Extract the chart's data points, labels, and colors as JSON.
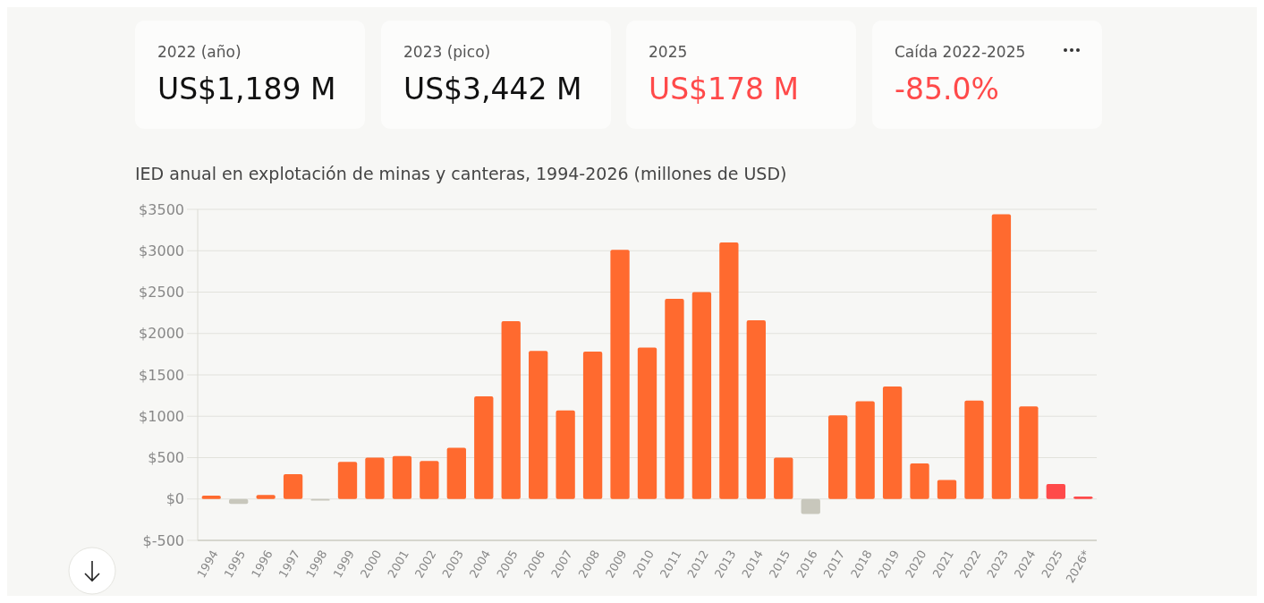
{
  "chart_data": [
    {
      "type": "other",
      "title": "2022 (año)",
      "subtitle": "US$1,189 M",
      "color": "#111111"
    },
    {
      "type": "other",
      "title": "2023 (pico)",
      "subtitle": "US$3,442 M",
      "color": "#111111"
    },
    {
      "type": "other",
      "title": "2025",
      "subtitle": "US$178 M",
      "color": "#ff4a4a"
    },
    {
      "type": "other",
      "title": "Caída 2022-2025",
      "subtitle": "-85.0%",
      "color": "#ff4a4a"
    },
    {
      "type": "bar",
      "title": "IED anual en explotación de minas y canteras, 1994-2026 (millones de USD)",
      "categories": [
        "1994",
        "1995",
        "1996",
        "1997",
        "1998",
        "1999",
        "2000",
        "2001",
        "2002",
        "2003",
        "2004",
        "2005",
        "2006",
        "2007",
        "2008",
        "2009",
        "2010",
        "2011",
        "2012",
        "2013",
        "2014",
        "2015",
        "2016",
        "2017",
        "2018",
        "2019",
        "2020",
        "2021",
        "2022",
        "2023",
        "2024",
        "2025",
        "2026*"
      ],
      "values": [
        40,
        -60,
        50,
        300,
        -20,
        450,
        500,
        520,
        460,
        620,
        1240,
        2150,
        1790,
        1070,
        1780,
        3010,
        1830,
        2420,
        2500,
        3100,
        2160,
        500,
        -180,
        1010,
        1180,
        1360,
        430,
        230,
        1190,
        3440,
        1120,
        180,
        30
      ],
      "colors": [
        "#ff6a2f",
        "#c8c7bc",
        "#ff6a2f",
        "#ff6a2f",
        "#c8c7bc",
        "#ff6a2f",
        "#ff6a2f",
        "#ff6a2f",
        "#ff6a2f",
        "#ff6a2f",
        "#ff6a2f",
        "#ff6a2f",
        "#ff6a2f",
        "#ff6a2f",
        "#ff6a2f",
        "#ff6a2f",
        "#ff6a2f",
        "#ff6a2f",
        "#ff6a2f",
        "#ff6a2f",
        "#ff6a2f",
        "#ff6a2f",
        "#c8c7bc",
        "#ff6a2f",
        "#ff6a2f",
        "#ff6a2f",
        "#ff6a2f",
        "#ff6a2f",
        "#ff6a2f",
        "#ff6a2f",
        "#ff6a2f",
        "#ff4a4a",
        "#ff4a4a"
      ],
      "ylim": [
        -500,
        3500
      ],
      "yticks": [
        {
          "value": -500,
          "label": "$-500"
        },
        {
          "value": 0,
          "label": "$0"
        },
        {
          "value": 500,
          "label": "$500"
        },
        {
          "value": 1000,
          "label": "$1000"
        },
        {
          "value": 1500,
          "label": "$1500"
        },
        {
          "value": 2000,
          "label": "$2000"
        },
        {
          "value": 2500,
          "label": "$2500"
        },
        {
          "value": 3000,
          "label": "$3000"
        },
        {
          "value": 3500,
          "label": "$3500"
        }
      ],
      "grid": "y"
    }
  ]
}
